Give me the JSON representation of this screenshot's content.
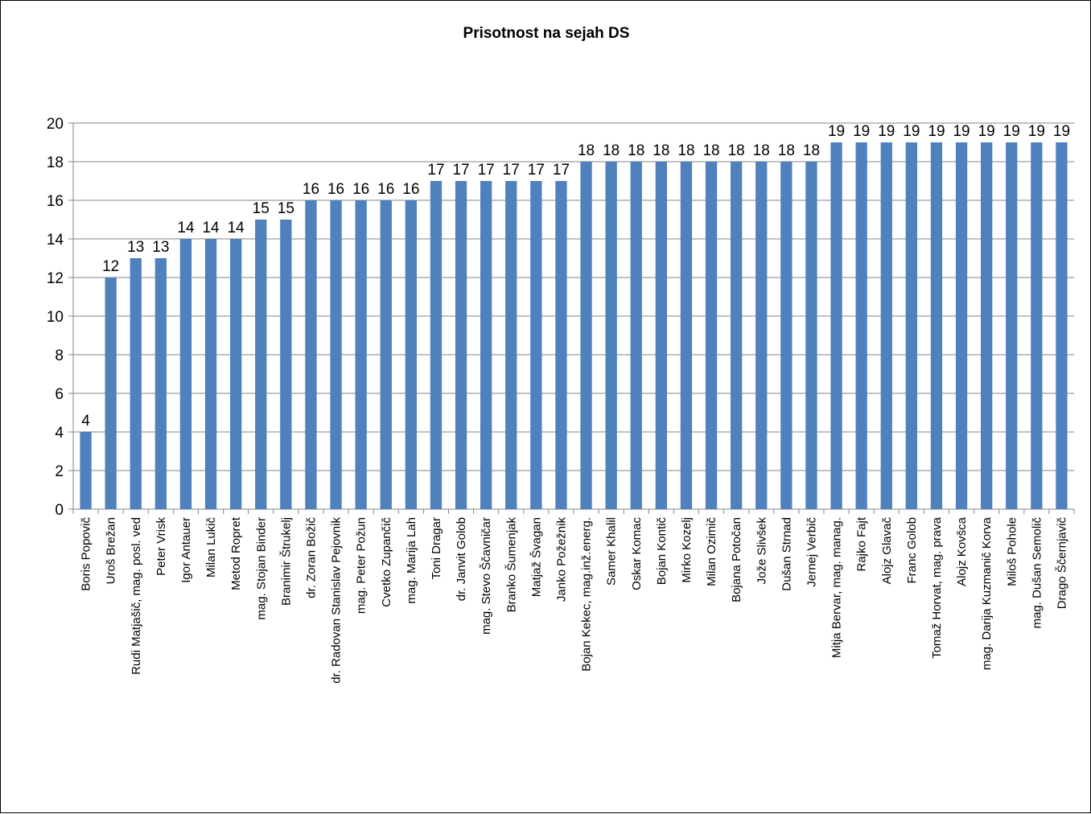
{
  "chart_data": {
    "type": "bar",
    "title": "Prisotnost na sejah DS",
    "xlabel": "",
    "ylabel": "",
    "ylim": [
      0,
      20
    ],
    "ytick_step": 2,
    "grid": true,
    "legend": "none",
    "bar_color": "#4F81BD",
    "categories": [
      "Boris Popovič",
      "Uroš Brežan",
      "Rudi Matjašič, mag. posl. ved",
      "Peter Vrisk",
      "Igor Antauer",
      "Milan Lukič",
      "Metod Ropret",
      "mag. Stojan Binder",
      "Branimir Štrukelj",
      "dr. Zoran Božič",
      "dr. Radovan Stanislav Pejovnik",
      "mag. Peter Požun",
      "Cvetko Zupančič",
      "mag. Marija Lah",
      "Toni Dragar",
      "dr. Janvit Golob",
      "mag. Stevo Ščavničar",
      "Branko Šumenjak",
      "Matjaž Švagan",
      "Janko Požežnik",
      "Bojan Kekec, mag.inž.energ.",
      "Samer Khalil",
      "Oskar Komac",
      "Bojan Kontič",
      "Mirko Kozelj",
      "Milan Ozimič",
      "Bojana Potočan",
      "Jože Slivšek",
      "Dušan Strnad",
      "Jernej Verbič",
      "Mitja Bervar, mag. manag.",
      "Rajko Fajt",
      "Alojz Glavač",
      "Franc Golob",
      "Tomaž Horvat, mag. prava",
      "Alojz Kovšca",
      "mag. Darija Kuzmanič Korva",
      "Miloš Pohole",
      "mag. Dušan Semolič",
      "Drago Ščernjavič"
    ],
    "values": [
      4,
      12,
      13,
      13,
      14,
      14,
      14,
      15,
      15,
      16,
      16,
      16,
      16,
      16,
      17,
      17,
      17,
      17,
      17,
      17,
      18,
      18,
      18,
      18,
      18,
      18,
      18,
      18,
      18,
      18,
      19,
      19,
      19,
      19,
      19,
      19,
      19,
      19,
      19,
      19
    ]
  }
}
